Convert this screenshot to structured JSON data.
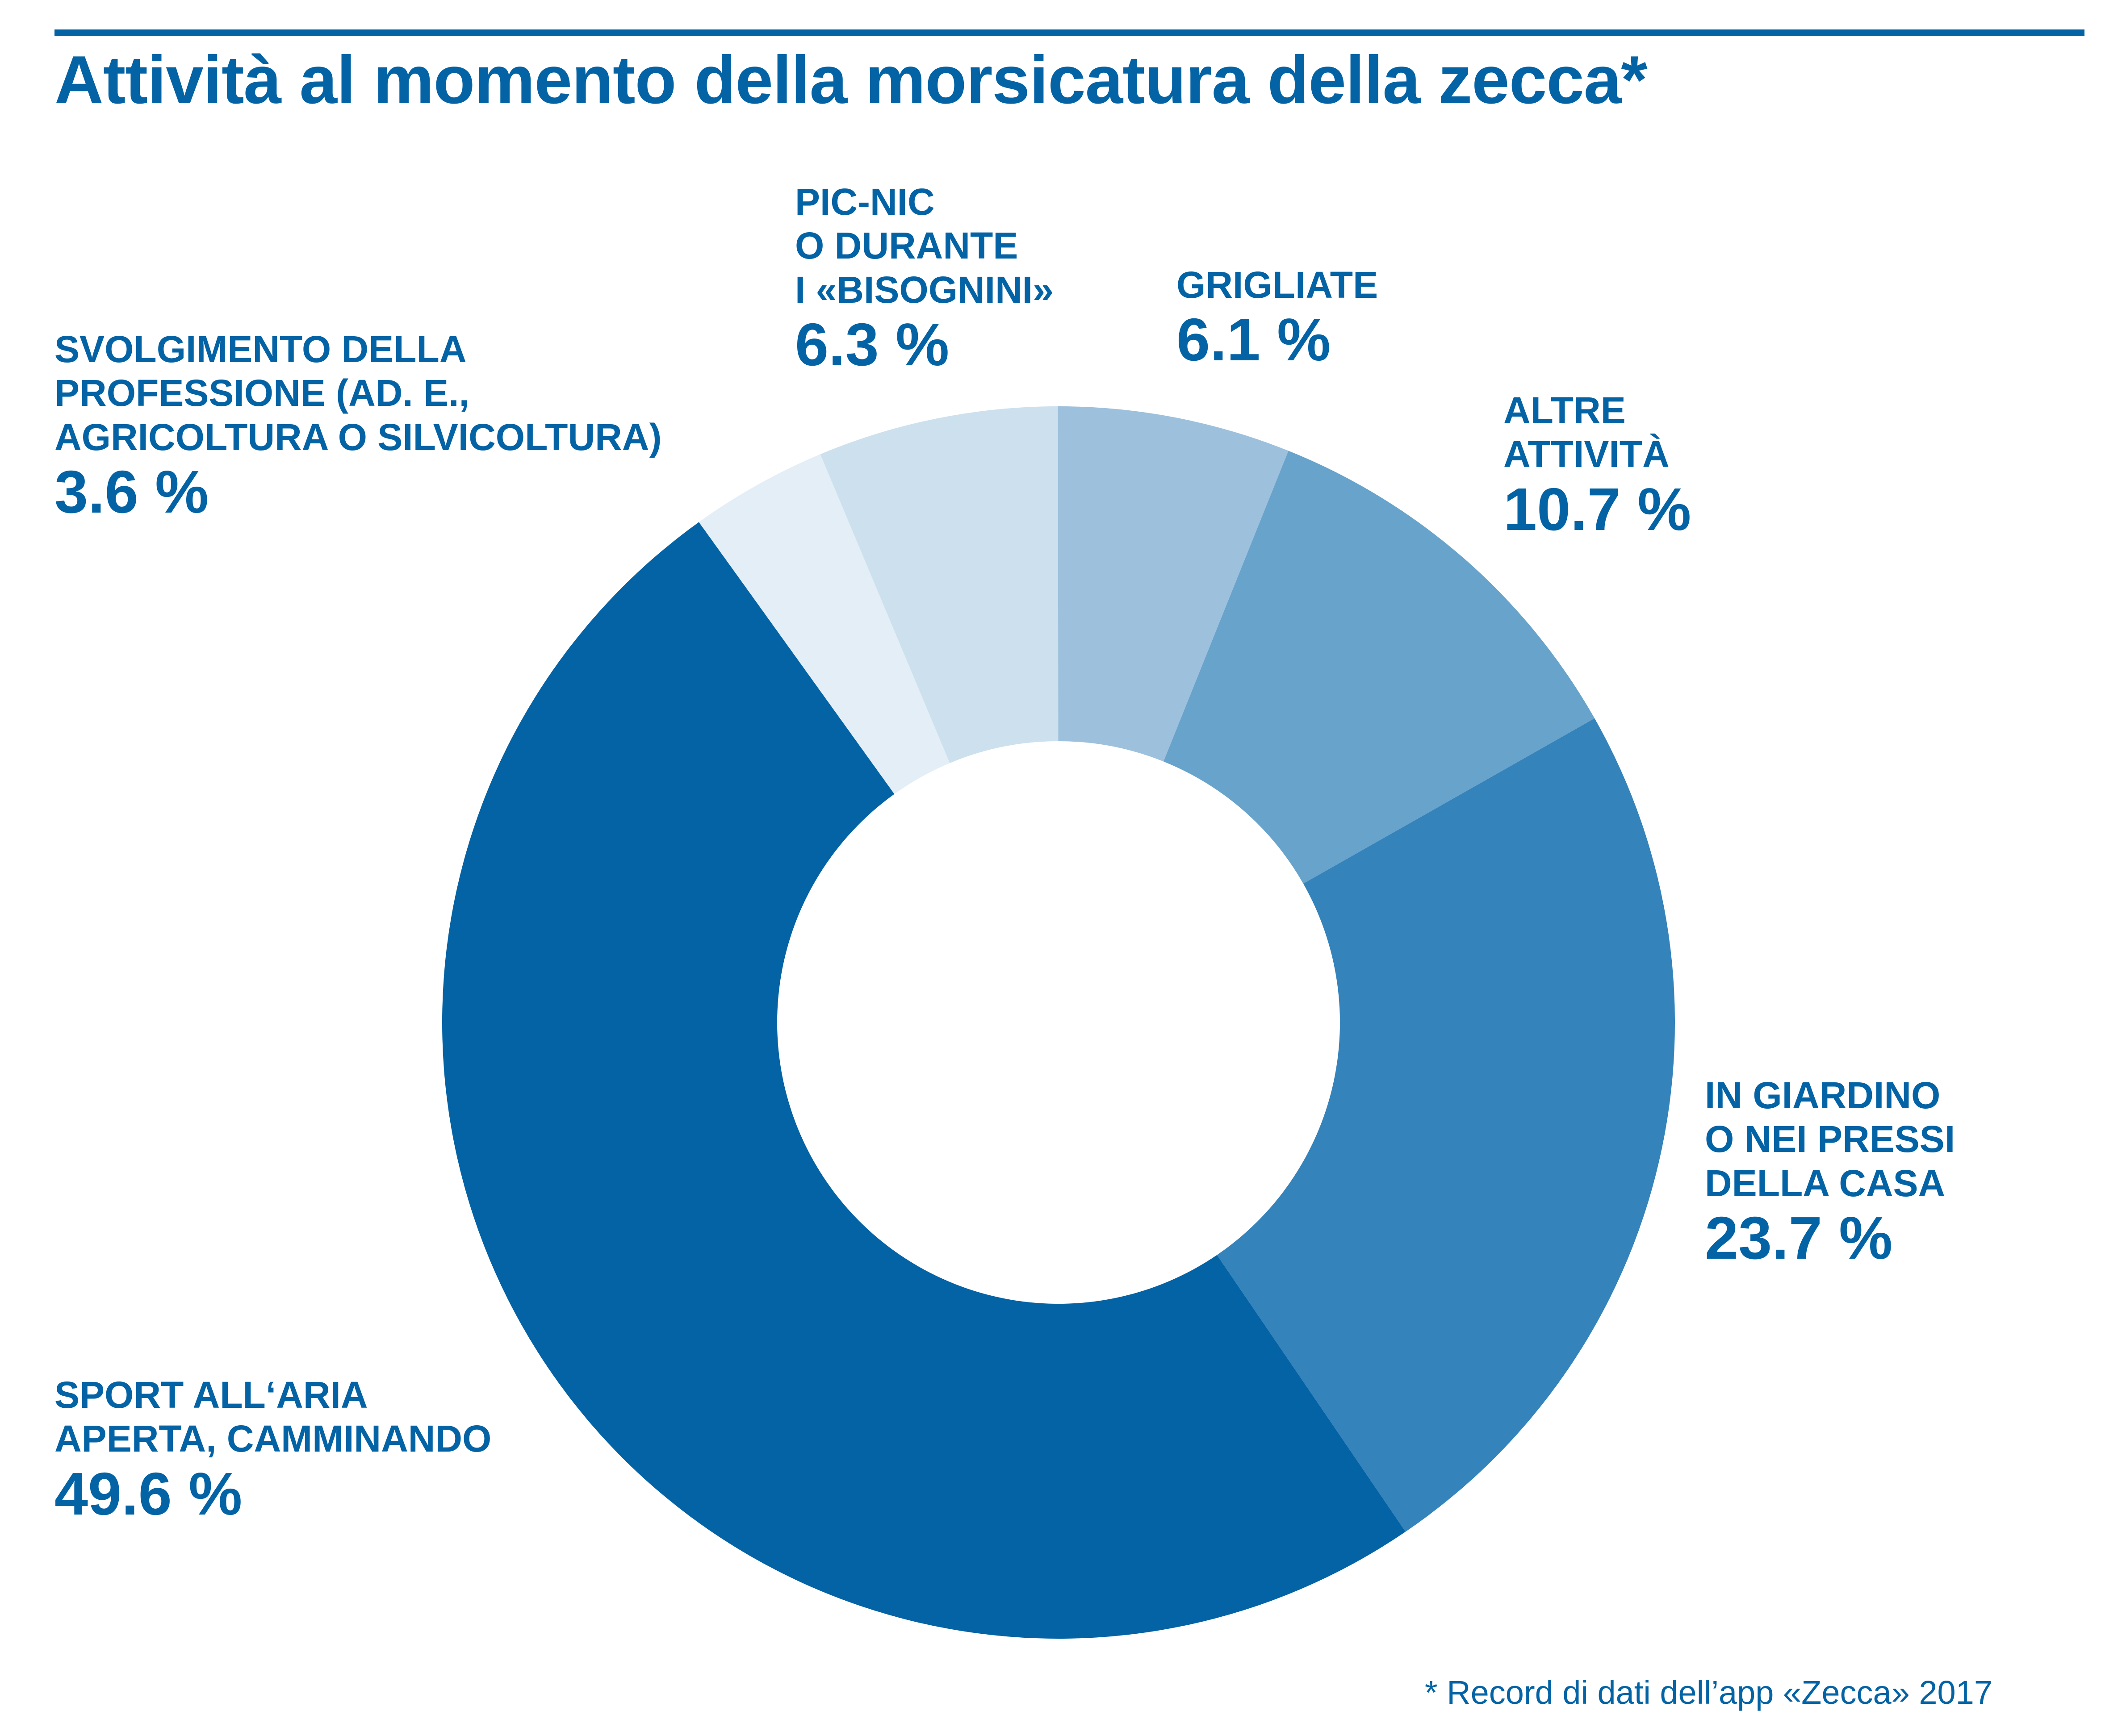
{
  "chart_data": {
    "type": "pie",
    "title": "Attività al momento della morsicatura della zecca*",
    "categories": [
      "SVOLGIMENTO DELLA\nPROFESSIONE (AD. E.,\nAGRICOLTURA O SILVICOLTURA)",
      "PIC-NIC\nO DURANTE\nI «BISOGNINI»",
      "GRIGLIATE",
      "ALTRE\nATTIVITÀ",
      "IN GIARDINO\nO NEI PRESSI\nDELLA CASA",
      "SPORT ALL‘ARIA\nAPERTA, CAMMINANDO"
    ],
    "values": [
      3.6,
      6.3,
      6.1,
      10.7,
      23.7,
      49.6
    ],
    "value_labels": [
      "3.6 %",
      "6.3 %",
      "6.1 %",
      "10.7 %",
      "23.7 %",
      "49.6 %"
    ],
    "colors": [
      "#e3eef7",
      "#cde0ee",
      "#9dc1dc",
      "#68a3cb",
      "#3583bb",
      "#0363a5"
    ],
    "start_angle_deg": -35.7,
    "direction": "clockwise",
    "donut": true
  },
  "footnote": "*  Record di dati dell’app «Zecca» 2017"
}
